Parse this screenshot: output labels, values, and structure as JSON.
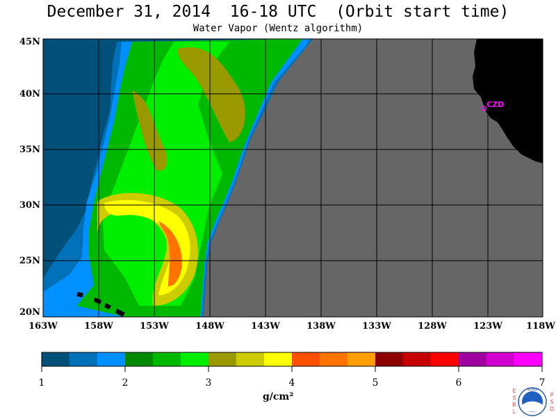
{
  "header": {
    "title": "December 31, 2014  16-18 UTC  (Orbit start time)",
    "subtitle": "Water Vapor (Wentz algorithm)"
  },
  "map": {
    "lat_labels": [
      "45N",
      "40N",
      "35N",
      "30N",
      "25N",
      "20N"
    ],
    "lon_labels": [
      "163W",
      "158W",
      "153W",
      "148W",
      "143W",
      "138W",
      "133W",
      "128W",
      "123W",
      "118W"
    ],
    "station_label": "CZD",
    "land_color": "#000000",
    "nodata_color": "#666666"
  },
  "colorbar": {
    "colors": [
      "#00507a",
      "#0070b8",
      "#0090ff",
      "#008800",
      "#00b800",
      "#00ee00",
      "#999900",
      "#cccc00",
      "#ffff00",
      "#ff5000",
      "#ff7400",
      "#ff9e00",
      "#8c0000",
      "#c60000",
      "#ff0000",
      "#a000a0",
      "#d000d0",
      "#ff00ff"
    ],
    "tick_labels": [
      "1",
      "2",
      "3",
      "4",
      "5",
      "6",
      "7"
    ],
    "unit": "g/cm²"
  },
  "logo": {
    "left_letters": [
      "E",
      "S",
      "R",
      "L"
    ],
    "right_letters": [
      "P",
      "S",
      "D"
    ],
    "text": "NOAA"
  }
}
